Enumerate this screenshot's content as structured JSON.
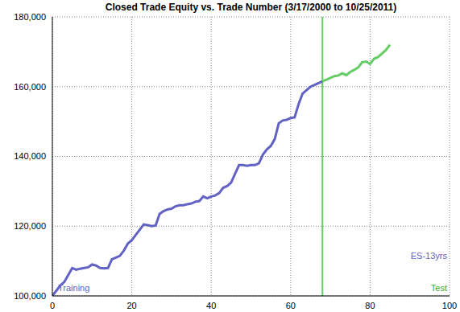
{
  "chart_data": {
    "type": "line",
    "title": "Closed Trade Equity vs. Trade Number (3/17/2000 to 10/25/2011)",
    "annotation": "ES-13yrs",
    "x": [
      0,
      1,
      2,
      3,
      4,
      5,
      6,
      7,
      8,
      9,
      10,
      11,
      12,
      13,
      14,
      15,
      16,
      17,
      18,
      19,
      20,
      21,
      22,
      23,
      24,
      25,
      26,
      27,
      28,
      29,
      30,
      31,
      32,
      33,
      34,
      35,
      36,
      37,
      38,
      39,
      40,
      41,
      42,
      43,
      44,
      45,
      46,
      47,
      48,
      49,
      50,
      51,
      52,
      53,
      54,
      55,
      56,
      57,
      58,
      59,
      60,
      61,
      62,
      63,
      64,
      65,
      66,
      67,
      68,
      69,
      70,
      71,
      72,
      73,
      74,
      75,
      76,
      77,
      78,
      79,
      80,
      81,
      82,
      83,
      84,
      85
    ],
    "series": [
      {
        "name": "Training",
        "color": "#6262c4",
        "values": [
          100000,
          101500,
          103000,
          104000,
          106000,
          108000,
          107500,
          107800,
          108000,
          108200,
          109000,
          108700,
          108000,
          107900,
          108000,
          110500,
          111000,
          111500,
          113000,
          115000,
          116000,
          117500,
          119000,
          120500,
          120300,
          120000,
          120200,
          123500,
          124300,
          124800,
          125000,
          125700,
          126000,
          126000,
          126300,
          126500,
          127000,
          127200,
          128500,
          128000,
          128500,
          128800,
          129500,
          131000,
          131500,
          132500,
          135000,
          137500,
          137500,
          137300,
          137500,
          137500,
          138000,
          140500,
          142000,
          143000,
          145000,
          149500,
          150300,
          150500,
          151000,
          151200,
          155000,
          158000,
          159000,
          160000,
          160500,
          161000,
          161500,
          null,
          null,
          null,
          null,
          null,
          null,
          null,
          null,
          null,
          null,
          null,
          null,
          null,
          null,
          null,
          null,
          null
        ]
      },
      {
        "name": "Test",
        "color": "#66cc66",
        "values": [
          null,
          null,
          null,
          null,
          null,
          null,
          null,
          null,
          null,
          null,
          null,
          null,
          null,
          null,
          null,
          null,
          null,
          null,
          null,
          null,
          null,
          null,
          null,
          null,
          null,
          null,
          null,
          null,
          null,
          null,
          null,
          null,
          null,
          null,
          null,
          null,
          null,
          null,
          null,
          null,
          null,
          null,
          null,
          null,
          null,
          null,
          null,
          null,
          null,
          null,
          null,
          null,
          null,
          null,
          null,
          null,
          null,
          null,
          null,
          null,
          null,
          null,
          null,
          null,
          null,
          null,
          null,
          null,
          161500,
          162000,
          162500,
          163000,
          163200,
          163800,
          163300,
          164200,
          164800,
          165500,
          167000,
          167200,
          166500,
          168000,
          168500,
          169500,
          170500,
          172000
        ]
      }
    ],
    "xlim": [
      0,
      100
    ],
    "xticks": [
      0,
      20,
      40,
      60,
      80,
      100
    ],
    "ylim": [
      100000,
      180000
    ],
    "yticks": [
      {
        "value": 100000,
        "label": "100,000"
      },
      {
        "value": 120000,
        "label": "120,000"
      },
      {
        "value": 140000,
        "label": "140,000"
      },
      {
        "value": 160000,
        "label": "160,000"
      },
      {
        "value": 180000,
        "label": "180,000"
      }
    ],
    "grid": true
  }
}
